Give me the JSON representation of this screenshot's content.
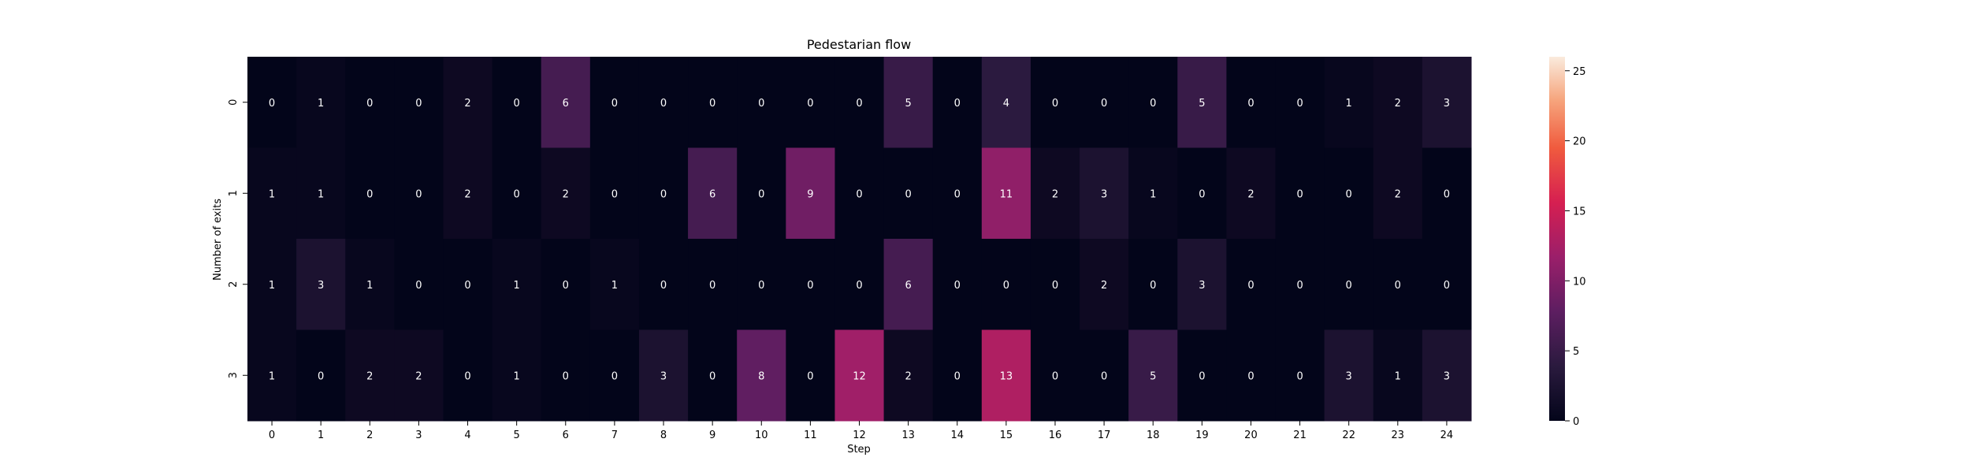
{
  "chart_data": {
    "type": "heatmap",
    "title": "Pedestarian flow",
    "xlabel": "Step",
    "ylabel": "Number of exits",
    "x_categories": [
      "0",
      "1",
      "2",
      "3",
      "4",
      "5",
      "6",
      "7",
      "8",
      "9",
      "10",
      "11",
      "12",
      "13",
      "14",
      "15",
      "16",
      "17",
      "18",
      "19",
      "20",
      "21",
      "22",
      "23",
      "24"
    ],
    "y_categories": [
      "0",
      "1",
      "2",
      "3"
    ],
    "values": [
      [
        0,
        1,
        0,
        0,
        2,
        0,
        6,
        0,
        0,
        0,
        0,
        0,
        0,
        5,
        0,
        4,
        0,
        0,
        0,
        5,
        0,
        0,
        1,
        2,
        3
      ],
      [
        1,
        1,
        0,
        0,
        2,
        0,
        2,
        0,
        0,
        6,
        0,
        9,
        0,
        0,
        0,
        11,
        2,
        3,
        1,
        0,
        2,
        0,
        0,
        2,
        0
      ],
      [
        1,
        3,
        1,
        0,
        0,
        1,
        0,
        1,
        0,
        0,
        0,
        0,
        0,
        6,
        0,
        0,
        0,
        2,
        0,
        3,
        0,
        0,
        0,
        0,
        0
      ],
      [
        1,
        0,
        2,
        2,
        0,
        1,
        0,
        0,
        3,
        0,
        8,
        0,
        12,
        2,
        0,
        13,
        0,
        0,
        5,
        0,
        0,
        0,
        3,
        1,
        3
      ]
    ],
    "colorbar": {
      "min": 0,
      "max": 26,
      "ticks": [
        "0",
        "5",
        "10",
        "15",
        "20",
        "25"
      ],
      "colormap": "rocket"
    },
    "annotations": true
  }
}
